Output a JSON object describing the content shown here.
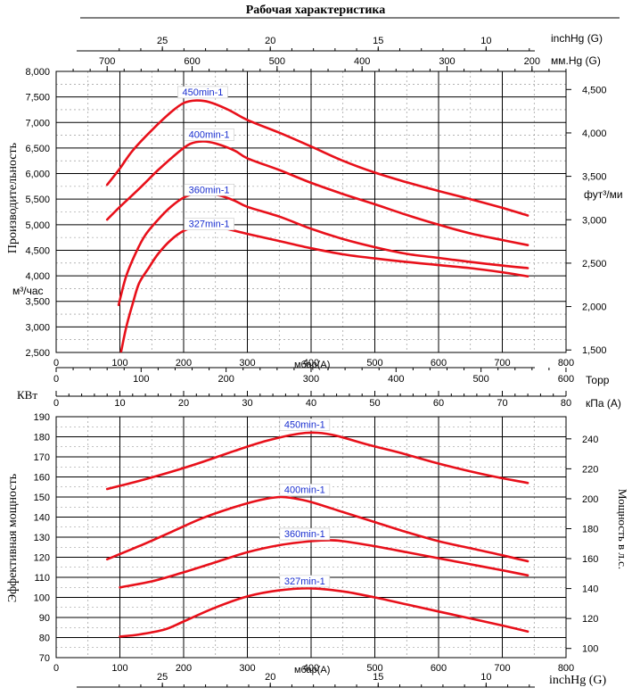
{
  "title": "Рабочая характеристика",
  "chart_data": [
    {
      "type": "line",
      "name": "capacity",
      "x_unit_label": "мбар(A)",
      "xlim": [
        0,
        800
      ],
      "x_ticks": [
        0,
        100,
        200,
        300,
        400,
        500,
        600,
        700,
        800
      ],
      "ylabel": "Производительность",
      "y_unit_label": "м³/час",
      "ylim": [
        2500,
        8000
      ],
      "y_ticks": [
        2500,
        3000,
        3500,
        4000,
        4500,
        5000,
        5500,
        6000,
        6500,
        7000,
        7500,
        8000
      ],
      "y_tick_labels": [
        "2,500",
        "3,000",
        "3,500",
        "4,000",
        "4,500",
        "5,000",
        "5,500",
        "6,000",
        "6,500",
        "7,000",
        "7,500",
        "8,000"
      ],
      "y2_unit_label": "фут³/ми",
      "y2_ticks": [
        1500,
        2000,
        2500,
        3000,
        3500,
        4000,
        4500
      ],
      "y2_tick_labels": [
        "1,500",
        "2,000",
        "2,500",
        "3,000",
        "3,500",
        "4,000",
        "4,500"
      ],
      "top_axis_mmhg": {
        "label": "мм.Hg (G)",
        "ticks": [
          700,
          600,
          500,
          400,
          300,
          200
        ],
        "tick_labels": [
          "700",
          "600",
          "500",
          "400",
          "300",
          "200"
        ]
      },
      "top_axis_inchhg": {
        "label": "inchHg (G)",
        "ticks": [
          25,
          20,
          15,
          10
        ],
        "tick_labels": [
          "25",
          "20",
          "15",
          "10"
        ]
      },
      "bottom_axis_torr": {
        "label": "Торр",
        "ticks": [
          0,
          100,
          200,
          300,
          400,
          500,
          600
        ],
        "tick_labels": [
          "0",
          "100",
          "200",
          "300",
          "400",
          "500",
          "600"
        ]
      },
      "series": [
        {
          "name": "450min-1",
          "label_at": [
            230,
            7530
          ],
          "x": [
            80,
            100,
            120,
            150,
            180,
            200,
            220,
            240,
            270,
            300,
            350,
            400,
            450,
            500,
            550,
            600,
            650,
            700,
            740
          ],
          "y": [
            5780,
            6100,
            6450,
            6850,
            7200,
            7380,
            7430,
            7400,
            7250,
            7050,
            6800,
            6530,
            6250,
            6020,
            5830,
            5660,
            5500,
            5330,
            5180
          ]
        },
        {
          "name": "400min-1",
          "label_at": [
            240,
            6700
          ],
          "x": [
            80,
            100,
            130,
            160,
            190,
            210,
            230,
            250,
            280,
            300,
            350,
            400,
            450,
            500,
            550,
            600,
            650,
            700,
            740
          ],
          "y": [
            5100,
            5350,
            5700,
            6070,
            6400,
            6580,
            6630,
            6590,
            6450,
            6300,
            6070,
            5820,
            5600,
            5400,
            5190,
            5000,
            4830,
            4700,
            4600
          ]
        },
        {
          "name": "360min-1",
          "label_at": [
            240,
            5620
          ],
          "x": [
            98,
            110,
            125,
            140,
            160,
            180,
            200,
            220,
            240,
            260,
            280,
            300,
            350,
            400,
            450,
            500,
            550,
            600,
            650,
            700,
            740
          ],
          "y": [
            3430,
            4000,
            4450,
            4800,
            5100,
            5350,
            5530,
            5610,
            5610,
            5560,
            5470,
            5350,
            5160,
            4920,
            4720,
            4560,
            4430,
            4350,
            4270,
            4200,
            4150
          ]
        },
        {
          "name": "327min-1",
          "label_at": [
            240,
            4950
          ],
          "x": [
            102,
            110,
            120,
            130,
            145,
            160,
            180,
            200,
            220,
            240,
            260,
            300,
            350,
            400,
            450,
            500,
            550,
            600,
            650,
            700,
            740
          ],
          "y": [
            2520,
            3000,
            3450,
            3850,
            4150,
            4430,
            4700,
            4880,
            4960,
            4980,
            4940,
            4820,
            4680,
            4540,
            4420,
            4340,
            4270,
            4210,
            4150,
            4070,
            3990
          ]
        }
      ]
    },
    {
      "type": "line",
      "name": "power",
      "x_unit_label": "мбар(A)",
      "xlim": [
        0,
        800
      ],
      "x_ticks": [
        0,
        100,
        200,
        300,
        400,
        500,
        600,
        700,
        800
      ],
      "ylabel": "Эффективная мощность",
      "y_unit_label": "КВт",
      "ylim": [
        70,
        190
      ],
      "y_ticks": [
        70,
        80,
        90,
        100,
        110,
        120,
        130,
        140,
        150,
        160,
        170,
        180,
        190
      ],
      "y_tick_labels": [
        "70",
        "80",
        "90",
        "100",
        "110",
        "120",
        "130",
        "140",
        "150",
        "160",
        "170",
        "180",
        "190"
      ],
      "y2_label": "Мощность в л.с.",
      "y2_ticks": [
        100,
        120,
        140,
        160,
        180,
        200,
        220,
        240
      ],
      "y2_tick_labels": [
        "100",
        "120",
        "140",
        "160",
        "180",
        "200",
        "220",
        "240"
      ],
      "top_axis_kpa": {
        "label": "кПа (A)",
        "ticks": [
          0,
          10,
          20,
          30,
          40,
          50,
          60,
          70,
          80
        ],
        "tick_labels": [
          "0",
          "10",
          "20",
          "30",
          "40",
          "50",
          "60",
          "70",
          "80"
        ]
      },
      "bottom_axis_inchhg": {
        "label": "inchHg (G)",
        "ticks": [
          25,
          20,
          15,
          10
        ],
        "tick_labels": [
          "25",
          "20",
          "15",
          "10"
        ]
      },
      "series": [
        {
          "name": "450min-1",
          "label_at": [
            390,
            184.5
          ],
          "x": [
            80,
            130,
            180,
            230,
            280,
            330,
            380,
            410,
            440,
            490,
            540,
            590,
            640,
            690,
            740
          ],
          "y": [
            154,
            158,
            162.5,
            167.5,
            173,
            178,
            181.5,
            182,
            180.5,
            176,
            172,
            167.5,
            163.5,
            160,
            157
          ]
        },
        {
          "name": "400min-1",
          "label_at": [
            390,
            152
          ],
          "x": [
            80,
            130,
            180,
            230,
            280,
            320,
            350,
            370,
            400,
            450,
            500,
            550,
            600,
            650,
            700,
            740
          ],
          "y": [
            119,
            125.5,
            132.5,
            139.5,
            145,
            148.5,
            150,
            149.5,
            147.5,
            142.5,
            137.5,
            132.5,
            128,
            124.5,
            121,
            118
          ]
        },
        {
          "name": "360min-1",
          "label_at": [
            390,
            130
          ],
          "x": [
            100,
            150,
            200,
            250,
            300,
            350,
            400,
            430,
            450,
            500,
            550,
            600,
            650,
            700,
            740
          ],
          "y": [
            105,
            108,
            112.5,
            117.5,
            122.5,
            126,
            128,
            128.5,
            128,
            125.5,
            122.5,
            119.5,
            116.5,
            113.5,
            111
          ]
        },
        {
          "name": "327min-1",
          "label_at": [
            390,
            106.5
          ],
          "x": [
            100,
            130,
            170,
            200,
            250,
            300,
            350,
            400,
            450,
            500,
            550,
            600,
            650,
            700,
            740
          ],
          "y": [
            80.5,
            81.5,
            84,
            88,
            95,
            100.5,
            103.5,
            104.5,
            103,
            100,
            96.5,
            93,
            89.5,
            86,
            83
          ]
        }
      ]
    }
  ]
}
